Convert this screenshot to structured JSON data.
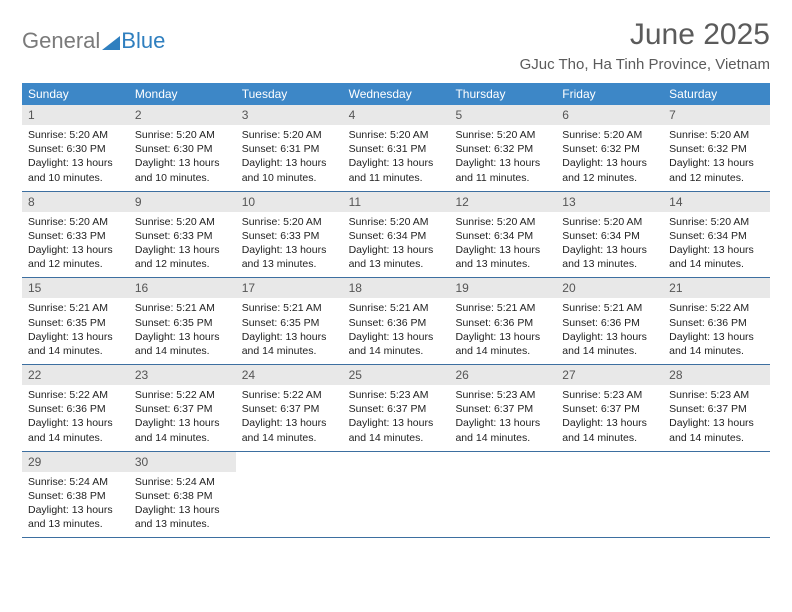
{
  "logo": {
    "part1": "General",
    "part2": "Blue"
  },
  "title": "June 2025",
  "location": "GJuc Tho, Ha Tinh Province, Vietnam",
  "colors": {
    "header_bg": "#3d87c7",
    "header_text": "#ffffff",
    "daynum_bg": "#e8e8e8",
    "title_text": "#5b5b5b",
    "border": "#3d6fa0",
    "logo_gray": "#7a7a7a",
    "logo_blue": "#2f7fbf"
  },
  "weekdays": [
    "Sunday",
    "Monday",
    "Tuesday",
    "Wednesday",
    "Thursday",
    "Friday",
    "Saturday"
  ],
  "days": [
    {
      "n": "1",
      "sunrise": "Sunrise: 5:20 AM",
      "sunset": "Sunset: 6:30 PM",
      "day1": "Daylight: 13 hours",
      "day2": "and 10 minutes."
    },
    {
      "n": "2",
      "sunrise": "Sunrise: 5:20 AM",
      "sunset": "Sunset: 6:30 PM",
      "day1": "Daylight: 13 hours",
      "day2": "and 10 minutes."
    },
    {
      "n": "3",
      "sunrise": "Sunrise: 5:20 AM",
      "sunset": "Sunset: 6:31 PM",
      "day1": "Daylight: 13 hours",
      "day2": "and 10 minutes."
    },
    {
      "n": "4",
      "sunrise": "Sunrise: 5:20 AM",
      "sunset": "Sunset: 6:31 PM",
      "day1": "Daylight: 13 hours",
      "day2": "and 11 minutes."
    },
    {
      "n": "5",
      "sunrise": "Sunrise: 5:20 AM",
      "sunset": "Sunset: 6:32 PM",
      "day1": "Daylight: 13 hours",
      "day2": "and 11 minutes."
    },
    {
      "n": "6",
      "sunrise": "Sunrise: 5:20 AM",
      "sunset": "Sunset: 6:32 PM",
      "day1": "Daylight: 13 hours",
      "day2": "and 12 minutes."
    },
    {
      "n": "7",
      "sunrise": "Sunrise: 5:20 AM",
      "sunset": "Sunset: 6:32 PM",
      "day1": "Daylight: 13 hours",
      "day2": "and 12 minutes."
    },
    {
      "n": "8",
      "sunrise": "Sunrise: 5:20 AM",
      "sunset": "Sunset: 6:33 PM",
      "day1": "Daylight: 13 hours",
      "day2": "and 12 minutes."
    },
    {
      "n": "9",
      "sunrise": "Sunrise: 5:20 AM",
      "sunset": "Sunset: 6:33 PM",
      "day1": "Daylight: 13 hours",
      "day2": "and 12 minutes."
    },
    {
      "n": "10",
      "sunrise": "Sunrise: 5:20 AM",
      "sunset": "Sunset: 6:33 PM",
      "day1": "Daylight: 13 hours",
      "day2": "and 13 minutes."
    },
    {
      "n": "11",
      "sunrise": "Sunrise: 5:20 AM",
      "sunset": "Sunset: 6:34 PM",
      "day1": "Daylight: 13 hours",
      "day2": "and 13 minutes."
    },
    {
      "n": "12",
      "sunrise": "Sunrise: 5:20 AM",
      "sunset": "Sunset: 6:34 PM",
      "day1": "Daylight: 13 hours",
      "day2": "and 13 minutes."
    },
    {
      "n": "13",
      "sunrise": "Sunrise: 5:20 AM",
      "sunset": "Sunset: 6:34 PM",
      "day1": "Daylight: 13 hours",
      "day2": "and 13 minutes."
    },
    {
      "n": "14",
      "sunrise": "Sunrise: 5:20 AM",
      "sunset": "Sunset: 6:34 PM",
      "day1": "Daylight: 13 hours",
      "day2": "and 14 minutes."
    },
    {
      "n": "15",
      "sunrise": "Sunrise: 5:21 AM",
      "sunset": "Sunset: 6:35 PM",
      "day1": "Daylight: 13 hours",
      "day2": "and 14 minutes."
    },
    {
      "n": "16",
      "sunrise": "Sunrise: 5:21 AM",
      "sunset": "Sunset: 6:35 PM",
      "day1": "Daylight: 13 hours",
      "day2": "and 14 minutes."
    },
    {
      "n": "17",
      "sunrise": "Sunrise: 5:21 AM",
      "sunset": "Sunset: 6:35 PM",
      "day1": "Daylight: 13 hours",
      "day2": "and 14 minutes."
    },
    {
      "n": "18",
      "sunrise": "Sunrise: 5:21 AM",
      "sunset": "Sunset: 6:36 PM",
      "day1": "Daylight: 13 hours",
      "day2": "and 14 minutes."
    },
    {
      "n": "19",
      "sunrise": "Sunrise: 5:21 AM",
      "sunset": "Sunset: 6:36 PM",
      "day1": "Daylight: 13 hours",
      "day2": "and 14 minutes."
    },
    {
      "n": "20",
      "sunrise": "Sunrise: 5:21 AM",
      "sunset": "Sunset: 6:36 PM",
      "day1": "Daylight: 13 hours",
      "day2": "and 14 minutes."
    },
    {
      "n": "21",
      "sunrise": "Sunrise: 5:22 AM",
      "sunset": "Sunset: 6:36 PM",
      "day1": "Daylight: 13 hours",
      "day2": "and 14 minutes."
    },
    {
      "n": "22",
      "sunrise": "Sunrise: 5:22 AM",
      "sunset": "Sunset: 6:36 PM",
      "day1": "Daylight: 13 hours",
      "day2": "and 14 minutes."
    },
    {
      "n": "23",
      "sunrise": "Sunrise: 5:22 AM",
      "sunset": "Sunset: 6:37 PM",
      "day1": "Daylight: 13 hours",
      "day2": "and 14 minutes."
    },
    {
      "n": "24",
      "sunrise": "Sunrise: 5:22 AM",
      "sunset": "Sunset: 6:37 PM",
      "day1": "Daylight: 13 hours",
      "day2": "and 14 minutes."
    },
    {
      "n": "25",
      "sunrise": "Sunrise: 5:23 AM",
      "sunset": "Sunset: 6:37 PM",
      "day1": "Daylight: 13 hours",
      "day2": "and 14 minutes."
    },
    {
      "n": "26",
      "sunrise": "Sunrise: 5:23 AM",
      "sunset": "Sunset: 6:37 PM",
      "day1": "Daylight: 13 hours",
      "day2": "and 14 minutes."
    },
    {
      "n": "27",
      "sunrise": "Sunrise: 5:23 AM",
      "sunset": "Sunset: 6:37 PM",
      "day1": "Daylight: 13 hours",
      "day2": "and 14 minutes."
    },
    {
      "n": "28",
      "sunrise": "Sunrise: 5:23 AM",
      "sunset": "Sunset: 6:37 PM",
      "day1": "Daylight: 13 hours",
      "day2": "and 14 minutes."
    },
    {
      "n": "29",
      "sunrise": "Sunrise: 5:24 AM",
      "sunset": "Sunset: 6:38 PM",
      "day1": "Daylight: 13 hours",
      "day2": "and 13 minutes."
    },
    {
      "n": "30",
      "sunrise": "Sunrise: 5:24 AM",
      "sunset": "Sunset: 6:38 PM",
      "day1": "Daylight: 13 hours",
      "day2": "and 13 minutes."
    }
  ]
}
